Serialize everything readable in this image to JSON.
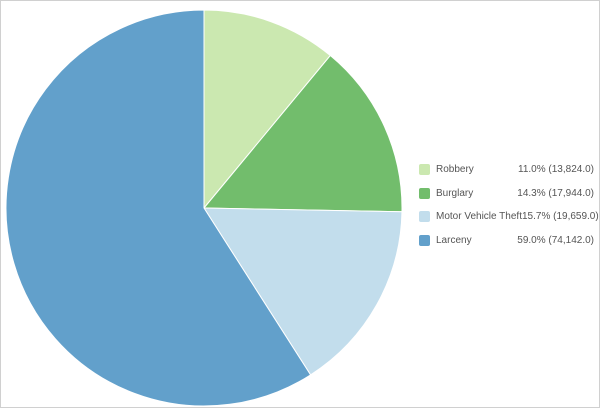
{
  "chart_data": {
    "type": "pie",
    "start": "top",
    "direction": "clockwise",
    "legend_position": "right",
    "slices": [
      {
        "label": "Robbery",
        "percent_text": "11.0% (13,824.0)",
        "value": 13824.0,
        "color": "#cbe8b0"
      },
      {
        "label": "Burglary",
        "percent_text": "14.3% (17,944.0)",
        "value": 17944.0,
        "color": "#72bd6c"
      },
      {
        "label": "Motor Vehicle Theft",
        "percent_text": "15.7% (19,659.0)",
        "value": 19659.0,
        "color": "#c2ddec"
      },
      {
        "label": "Larceny",
        "percent_text": "59.0% (74,142.0)",
        "value": 74142.0,
        "color": "#62a0cb"
      }
    ]
  }
}
